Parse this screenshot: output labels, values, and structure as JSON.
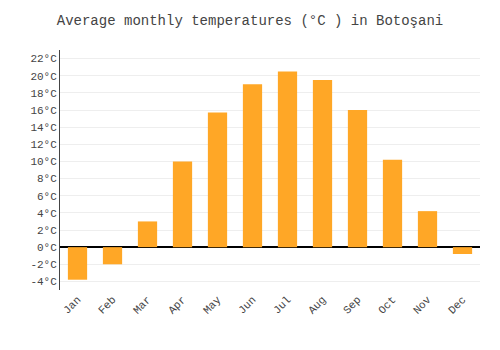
{
  "chart_data": {
    "type": "bar",
    "title": "Average monthly temperatures (°C ) in Botoşani",
    "categories": [
      "Jan",
      "Feb",
      "Mar",
      "Apr",
      "May",
      "Jun",
      "Jul",
      "Aug",
      "Sep",
      "Oct",
      "Nov",
      "Dec"
    ],
    "values": [
      -3.8,
      -2.0,
      3.0,
      10.0,
      15.7,
      19.0,
      20.5,
      19.5,
      16.0,
      10.2,
      4.2,
      -0.8
    ],
    "color": "#FFA726",
    "ylim": [
      -5,
      23
    ],
    "yticks": [
      {
        "value": -4,
        "label": "-4°C"
      },
      {
        "value": -2,
        "label": "-2°C"
      },
      {
        "value": 0,
        "label": "0°C"
      },
      {
        "value": 2,
        "label": "2°C"
      },
      {
        "value": 4,
        "label": "4°C"
      },
      {
        "value": 6,
        "label": "6°C"
      },
      {
        "value": 8,
        "label": "8°C"
      },
      {
        "value": 10,
        "label": "10°C"
      },
      {
        "value": 12,
        "label": "12°C"
      },
      {
        "value": 14,
        "label": "14°C"
      },
      {
        "value": 16,
        "label": "16°C"
      },
      {
        "value": 18,
        "label": "18°C"
      },
      {
        "value": 20,
        "label": "20°C"
      },
      {
        "value": 22,
        "label": "22°C"
      }
    ],
    "grid": true
  }
}
